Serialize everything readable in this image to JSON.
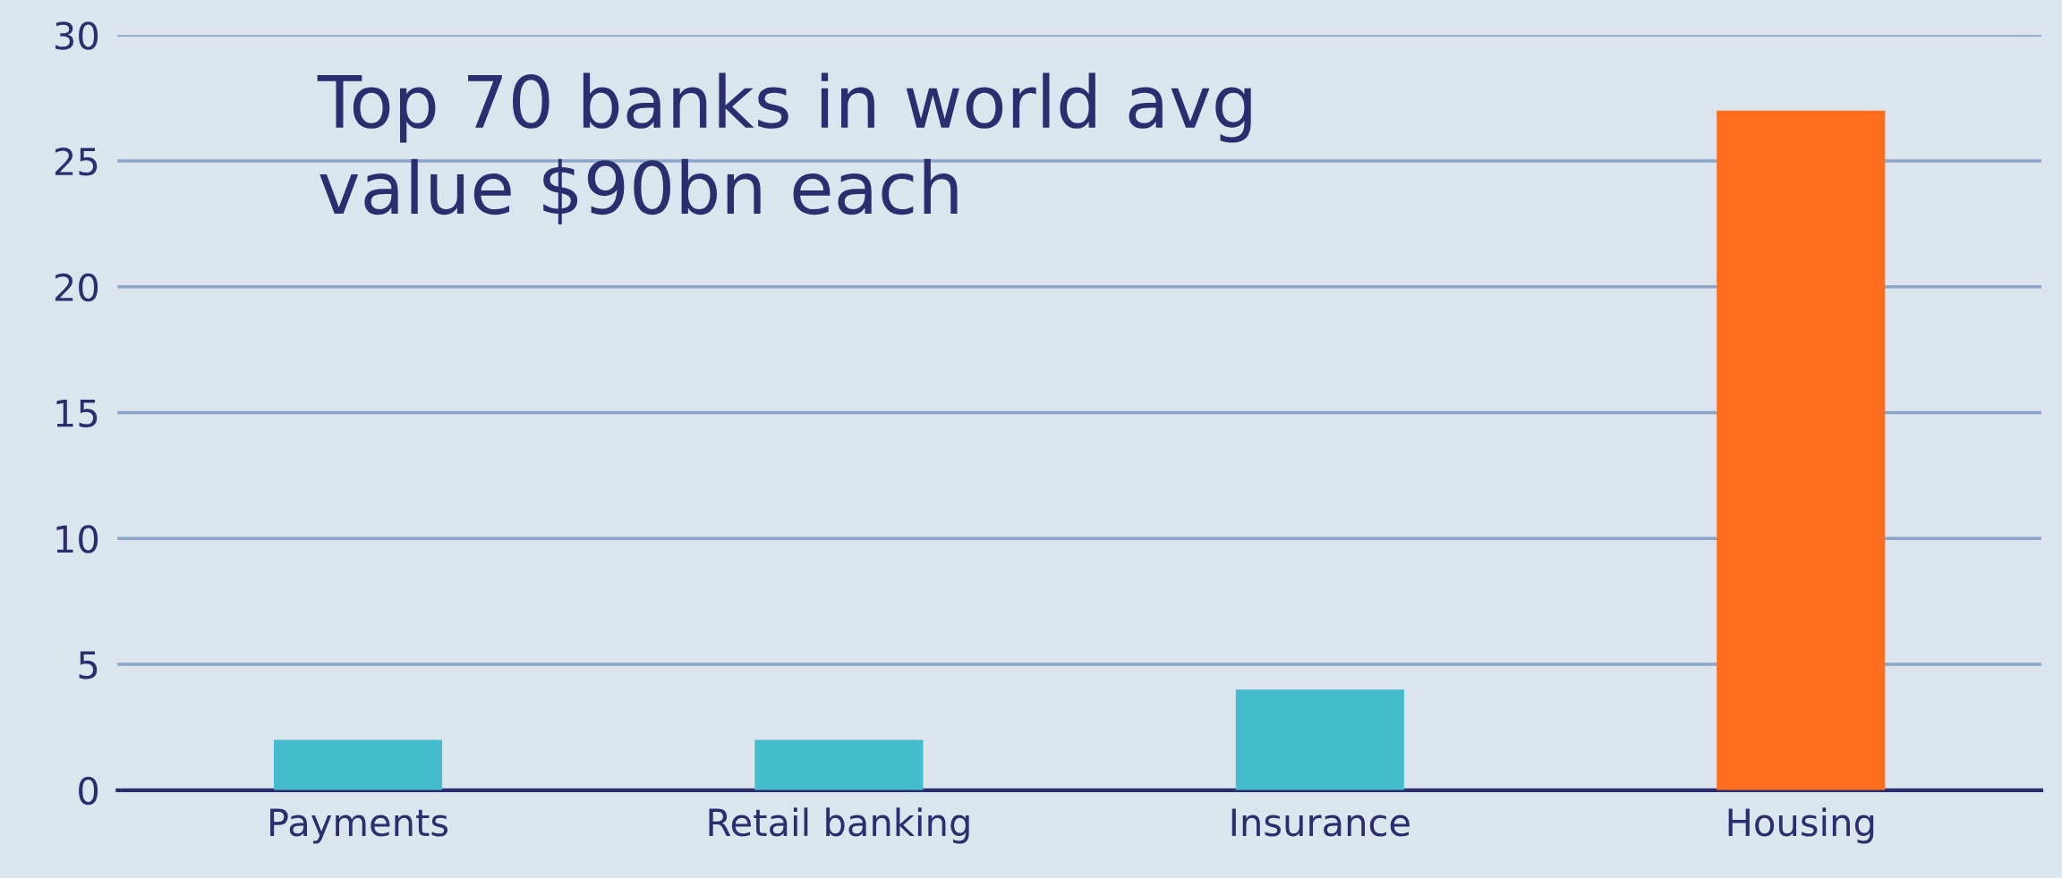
{
  "chart_data": {
    "type": "bar",
    "categories": [
      "Payments",
      "Retail banking",
      "Insurance",
      "Housing"
    ],
    "values": [
      2,
      2,
      4,
      27
    ],
    "colors": [
      "#45bccd",
      "#45bccd",
      "#45bccd",
      "#ff6d1f"
    ],
    "ylim": [
      0,
      30
    ],
    "yticks": [
      0,
      5,
      10,
      15,
      20,
      25,
      30
    ],
    "grid": "y",
    "annotations": [
      "Top 70 banks in world avg\nvalue $90bn each"
    ]
  }
}
